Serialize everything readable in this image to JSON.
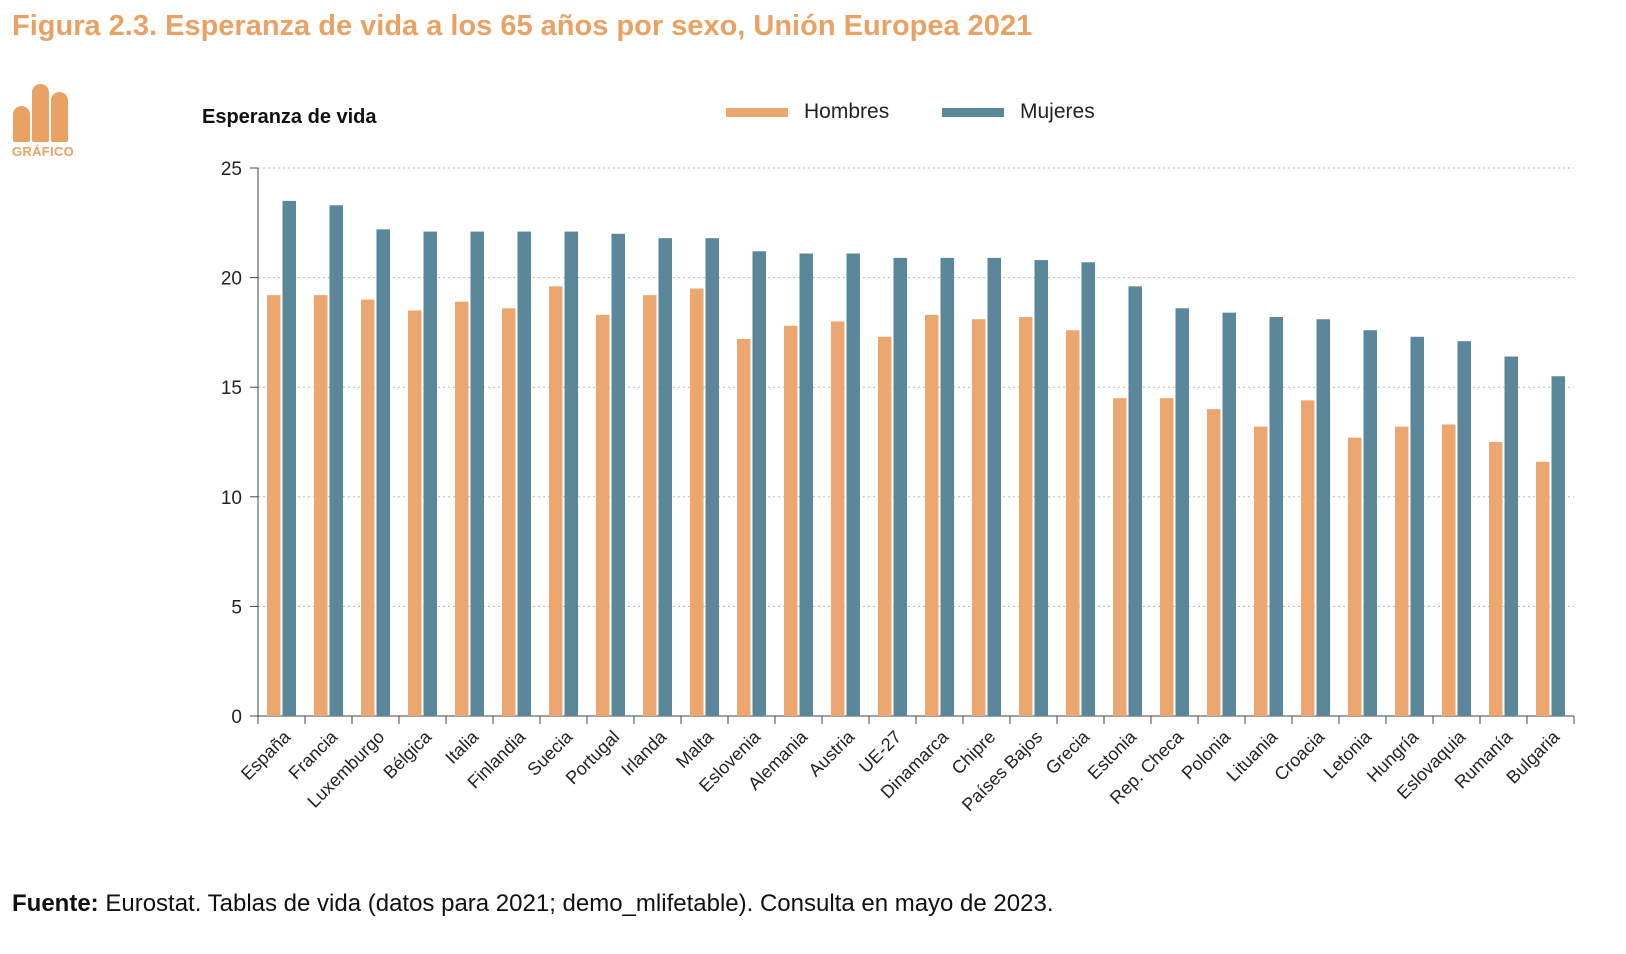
{
  "figure": {
    "title": "Figura 2.3. Esperanza de vida a los 65 años por sexo, Unión Europea 2021",
    "badge_label": "GRÁFICO",
    "badge_icon": "bar-chart-icon"
  },
  "source": {
    "label": "Fuente:",
    "text": " Eurostat. Tablas de vida (datos para 2021; demo_mlifetable). Consulta en mayo de 2023."
  },
  "colors": {
    "accent": "#e9a264",
    "hombres": "#eba76f",
    "mujeres": "#5a8799",
    "grid": "#b8b8b8",
    "axis": "#444444"
  },
  "chart_data": {
    "type": "bar",
    "title": "Figura 2.3. Esperanza de vida a los 65 años por sexo, Unión Europea 2021",
    "xlabel": "",
    "ylabel": "Esperanza de vida",
    "ylim": [
      0,
      25
    ],
    "yticks": [
      0,
      5,
      10,
      15,
      20,
      25
    ],
    "grid": true,
    "legend_position": "top-center",
    "categories": [
      "España",
      "Francia",
      "Luxemburgo",
      "Bélgica",
      "Italia",
      "Finlandia",
      "Suecia",
      "Portugal",
      "Irlanda",
      "Malta",
      "Eslovenia",
      "Alemania",
      "Austria",
      "UE-27",
      "Dinamarca",
      "Chipre",
      "Países Bajos",
      "Grecia",
      "Estonia",
      "Rep. Checa",
      "Polonia",
      "Lituania",
      "Croacia",
      "Letonia",
      "Hungría",
      "Eslovaquia",
      "Rumanía",
      "Bulgaria"
    ],
    "series": [
      {
        "name": "Hombres",
        "values": [
          19.2,
          19.2,
          19.0,
          18.5,
          18.9,
          18.6,
          19.6,
          18.3,
          19.2,
          19.5,
          17.2,
          17.8,
          18.0,
          17.3,
          18.3,
          18.1,
          18.2,
          17.6,
          14.5,
          14.5,
          14.0,
          13.2,
          14.4,
          12.7,
          13.2,
          13.3,
          12.5,
          11.6
        ]
      },
      {
        "name": "Mujeres",
        "values": [
          23.5,
          23.3,
          22.2,
          22.1,
          22.1,
          22.1,
          22.1,
          22.0,
          21.8,
          21.8,
          21.2,
          21.1,
          21.1,
          20.9,
          20.9,
          20.9,
          20.8,
          20.7,
          19.6,
          18.6,
          18.4,
          18.2,
          18.1,
          17.6,
          17.3,
          17.1,
          16.4,
          15.5
        ]
      }
    ]
  }
}
